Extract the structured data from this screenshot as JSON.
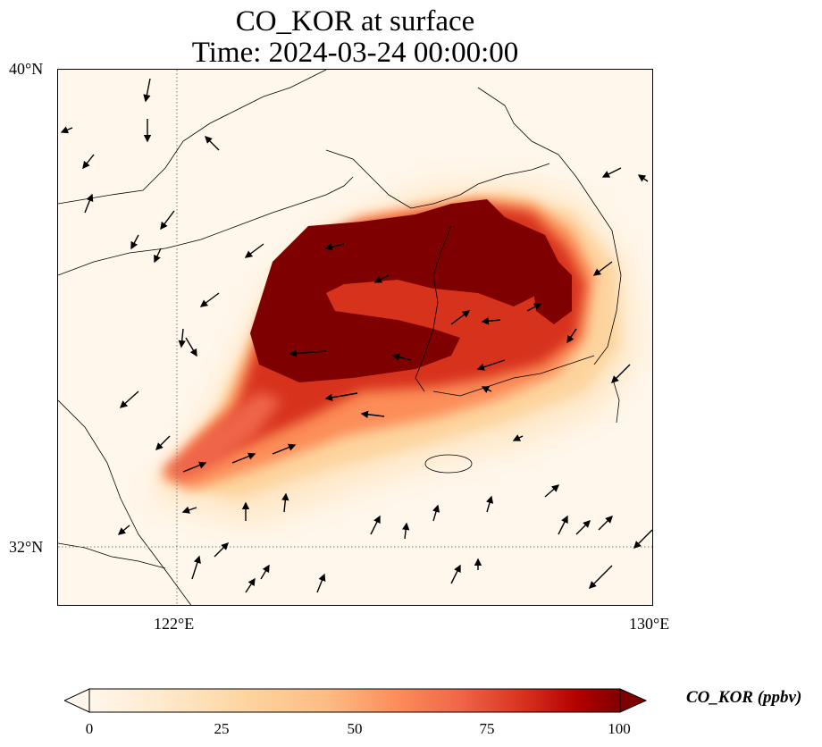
{
  "title": {
    "line1": "CO_KOR at surface",
    "line2": "Time: 2024-03-24 00:00:00"
  },
  "map": {
    "lat_labels": [
      "40°N",
      "32°N"
    ],
    "lon_labels": [
      "122°E",
      "130°E"
    ],
    "gridlines": "dotted",
    "coastlines": "black thin"
  },
  "colorbar": {
    "label": "CO_KOR (ppbv)",
    "ticks": [
      "0",
      "25",
      "50",
      "75",
      "100"
    ],
    "range": [
      0,
      100
    ],
    "extend": "both",
    "colormap": [
      "#fff7ec",
      "#fee8c8",
      "#fdd49e",
      "#fdbb84",
      "#fc8d59",
      "#ef6548",
      "#d7301f",
      "#b30000",
      "#7f0000"
    ]
  }
}
